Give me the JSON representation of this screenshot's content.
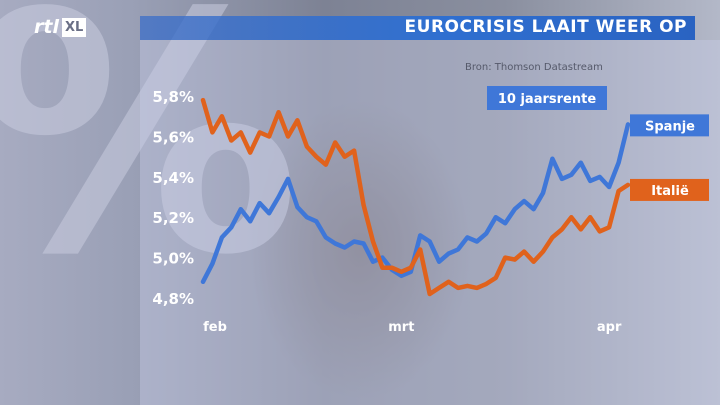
{
  "broadcast": {
    "logo_text": "rtl",
    "logo_box": "XL"
  },
  "header": {
    "title": "EUROCRISIS LAAIT WEER OP"
  },
  "source": "Bron: Thomson Datastream",
  "chart_data": {
    "type": "line",
    "title": "EUROCRISIS LAAIT WEER OP",
    "subtitle": "10 jaarsrente",
    "xlabel": "",
    "ylabel": "",
    "x": [
      "2012-02-01",
      "2012-02-02",
      "2012-02-03",
      "2012-02-06",
      "2012-02-07",
      "2012-02-08",
      "2012-02-09",
      "2012-02-10",
      "2012-02-13",
      "2012-02-14",
      "2012-02-15",
      "2012-02-16",
      "2012-02-17",
      "2012-02-20",
      "2012-02-21",
      "2012-02-22",
      "2012-02-23",
      "2012-02-24",
      "2012-02-27",
      "2012-02-28",
      "2012-02-29",
      "2012-03-01",
      "2012-03-02",
      "2012-03-05",
      "2012-03-06",
      "2012-03-07",
      "2012-03-08",
      "2012-03-09",
      "2012-03-12",
      "2012-03-13",
      "2012-03-14",
      "2012-03-15",
      "2012-03-16",
      "2012-03-19",
      "2012-03-20",
      "2012-03-21",
      "2012-03-22",
      "2012-03-23",
      "2012-03-26",
      "2012-03-27",
      "2012-03-28",
      "2012-03-29",
      "2012-03-30",
      "2012-04-02",
      "2012-04-03",
      "2012-04-04"
    ],
    "x_ticks": [
      "feb",
      "mrt",
      "apr"
    ],
    "y_ticks": [
      "4,8%",
      "5,0%",
      "5,2%",
      "5,4%",
      "5,6%",
      "5,8%"
    ],
    "ylim": [
      4.8,
      5.85
    ],
    "series": [
      {
        "name": "Spanje",
        "color": "#3f77d8",
        "values": [
          4.88,
          4.97,
          5.1,
          5.15,
          5.24,
          5.18,
          5.27,
          5.22,
          5.3,
          5.39,
          5.25,
          5.2,
          5.18,
          5.1,
          5.07,
          5.05,
          5.08,
          5.07,
          4.98,
          5.0,
          4.94,
          4.91,
          4.93,
          5.11,
          5.08,
          4.98,
          5.02,
          5.04,
          5.1,
          5.08,
          5.12,
          5.2,
          5.17,
          5.24,
          5.28,
          5.24,
          5.32,
          5.49,
          5.39,
          5.41,
          5.47,
          5.38,
          5.4,
          5.35,
          5.47,
          5.66
        ]
      },
      {
        "name": "Italië",
        "color": "#e0621c",
        "values": [
          5.78,
          5.62,
          5.7,
          5.58,
          5.62,
          5.52,
          5.62,
          5.6,
          5.72,
          5.6,
          5.68,
          5.55,
          5.5,
          5.46,
          5.57,
          5.5,
          5.53,
          5.26,
          5.08,
          4.95,
          4.95,
          4.93,
          4.95,
          5.04,
          4.82,
          4.85,
          4.88,
          4.85,
          4.86,
          4.85,
          4.87,
          4.9,
          5.0,
          4.99,
          5.03,
          4.98,
          5.03,
          5.1,
          5.14,
          5.2,
          5.14,
          5.2,
          5.13,
          5.15,
          5.33,
          5.36
        ]
      }
    ],
    "legend": "right"
  }
}
